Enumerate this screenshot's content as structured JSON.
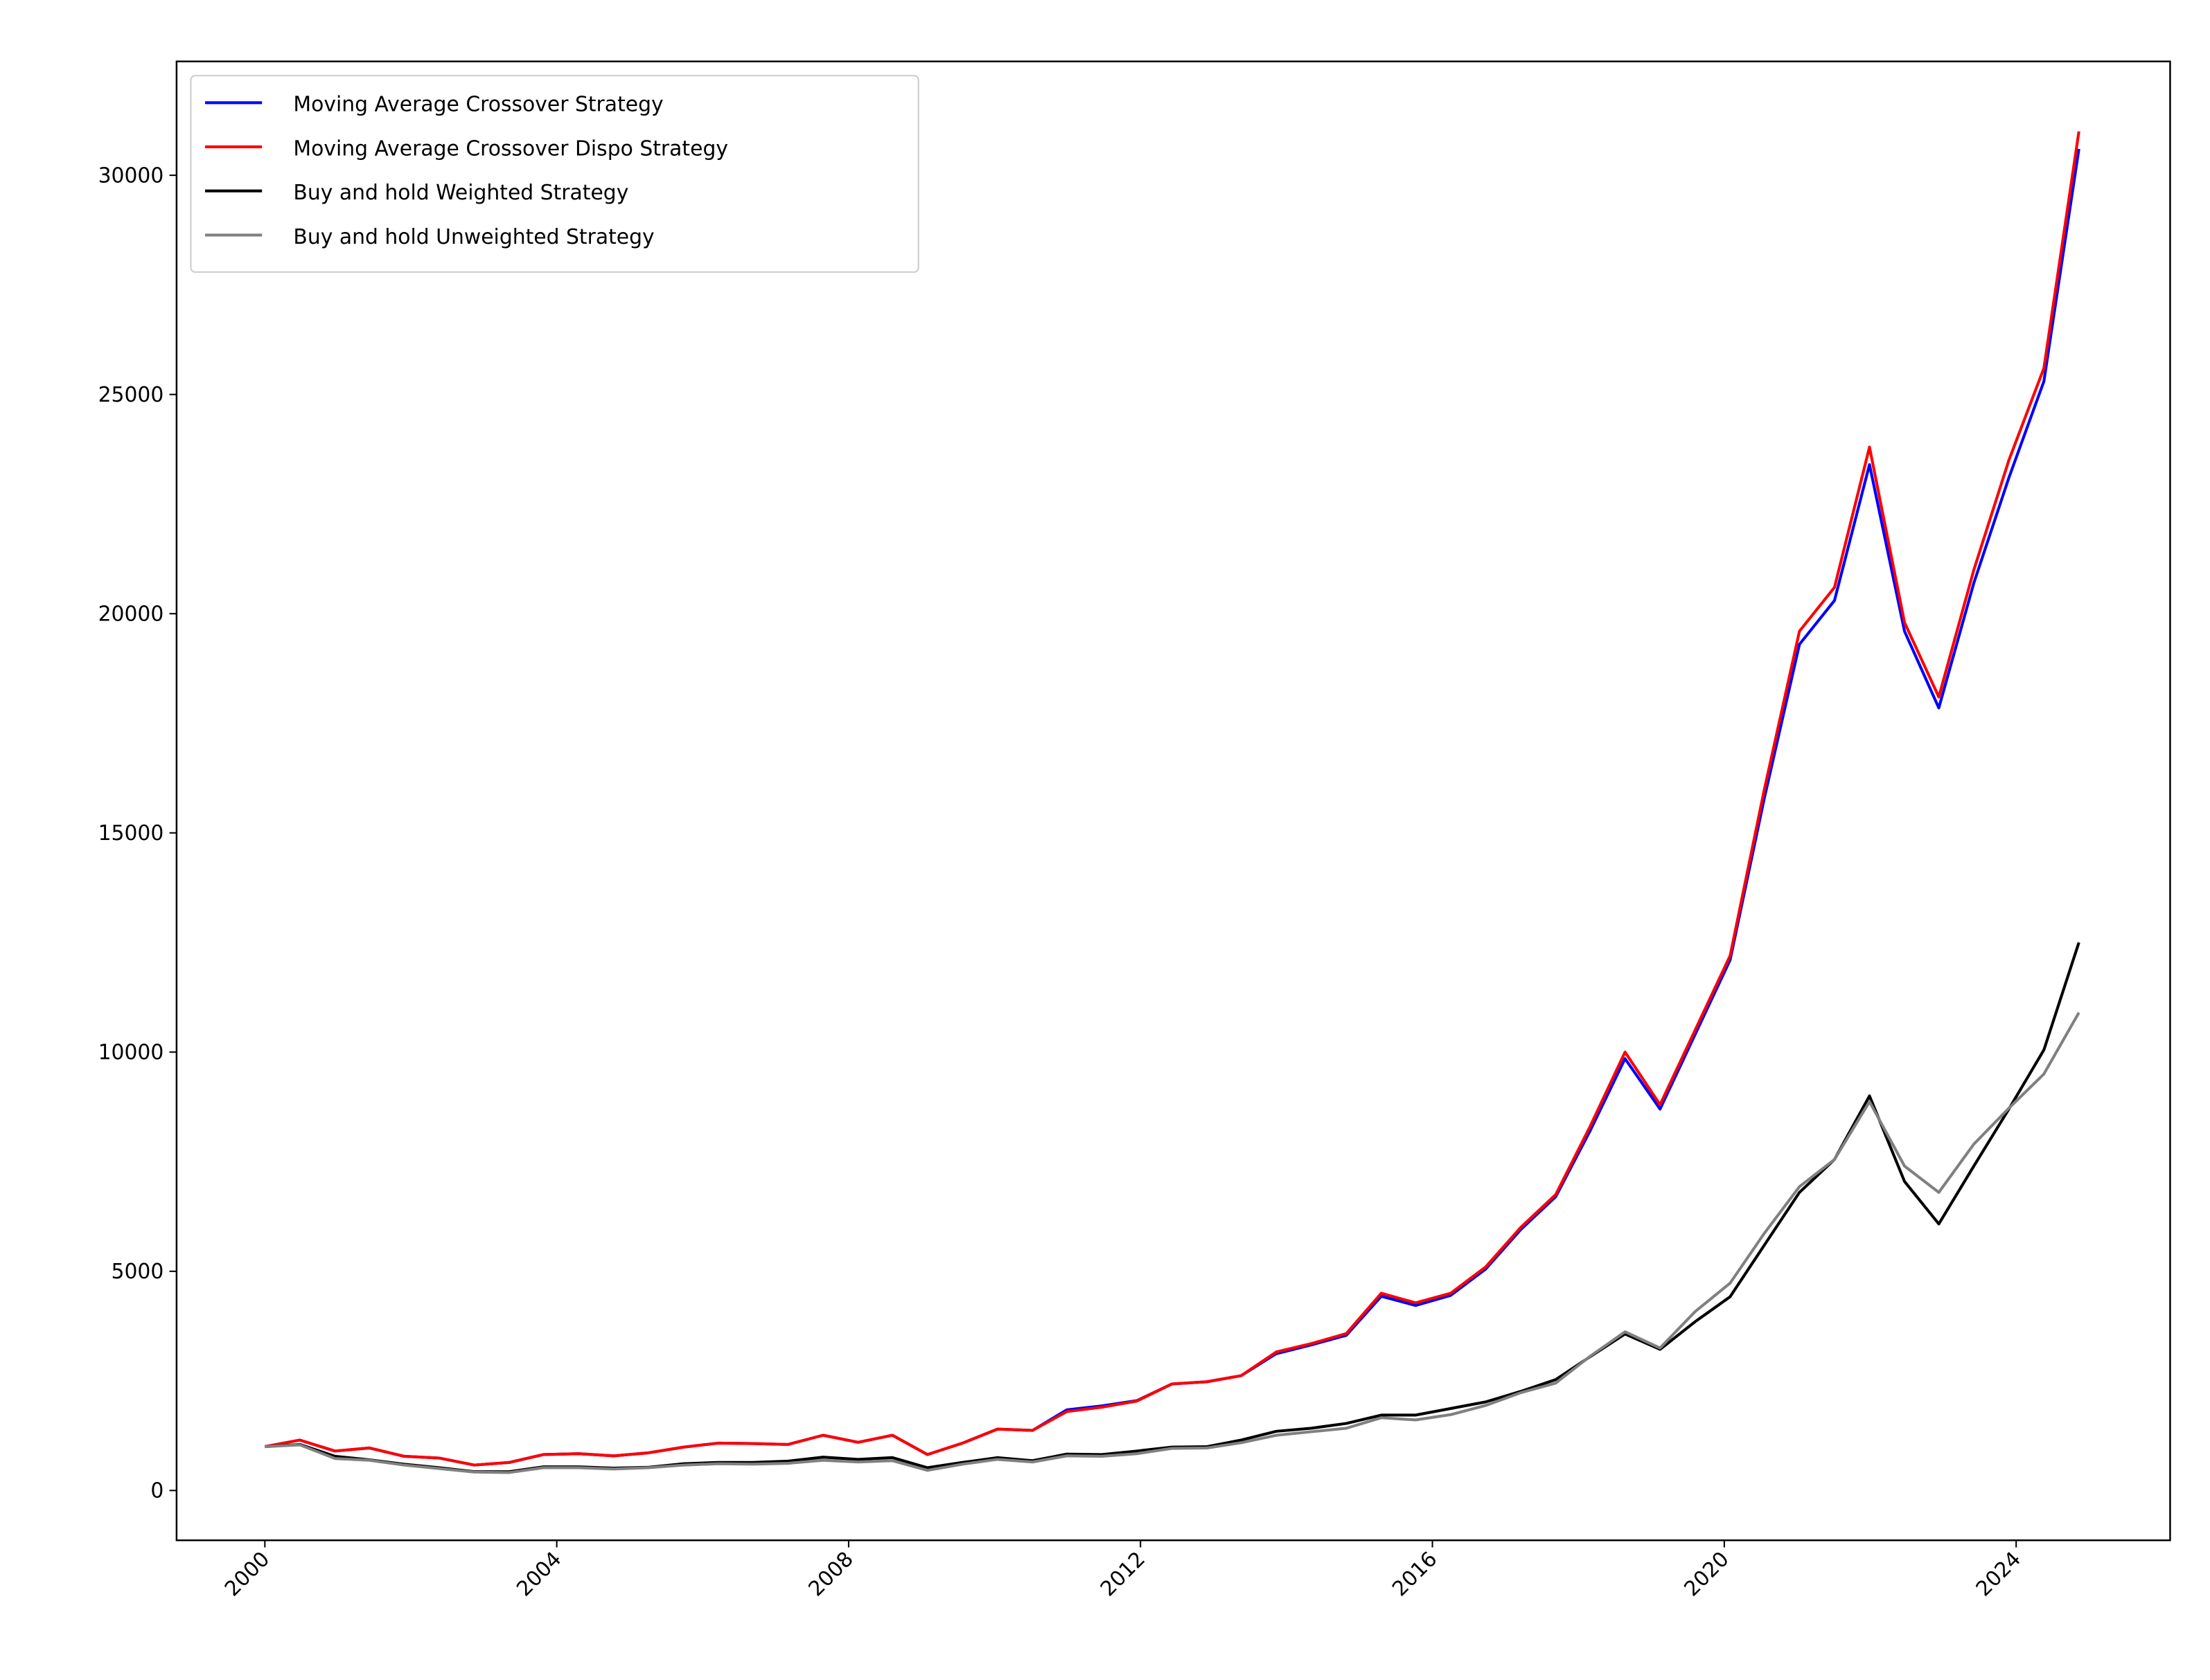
{
  "chart_data": {
    "type": "line",
    "x": [
      2000.0,
      2000.48,
      2000.96,
      2001.43,
      2001.91,
      2002.39,
      2002.87,
      2003.35,
      2003.82,
      2004.3,
      2004.78,
      2005.26,
      2005.74,
      2006.21,
      2006.69,
      2007.17,
      2007.65,
      2008.13,
      2008.6,
      2009.08,
      2009.56,
      2010.04,
      2010.52,
      2010.99,
      2011.47,
      2011.95,
      2012.43,
      2012.91,
      2013.38,
      2013.86,
      2014.34,
      2014.82,
      2015.3,
      2015.77,
      2016.25,
      2016.73,
      2017.21,
      2017.69,
      2018.16,
      2018.64,
      2019.12,
      2019.6,
      2020.08,
      2020.55,
      2021.03,
      2021.51,
      2021.99,
      2022.47,
      2022.94,
      2023.42,
      2023.9,
      2024.38,
      2024.86
    ],
    "series": [
      {
        "name": "Moving Average Crossover Strategy",
        "color": "#0000ff",
        "values": [
          1000,
          1150,
          900,
          970,
          780,
          740,
          580,
          640,
          820,
          840,
          790,
          860,
          990,
          1080,
          1070,
          1050,
          1260,
          1100,
          1260,
          820,
          1080,
          1400,
          1370,
          1840,
          1930,
          2050,
          2430,
          2480,
          2620,
          3120,
          3320,
          3540,
          4430,
          4220,
          4450,
          5050,
          5950,
          6700,
          8200,
          9850,
          8700,
          10400,
          12100,
          15800,
          19300,
          20300,
          23400,
          19600,
          17850,
          20700,
          23100,
          25300,
          30600
        ]
      },
      {
        "name": "Moving Average Crossover Dispo Strategy",
        "color": "#ff0000",
        "values": [
          1000,
          1150,
          900,
          970,
          780,
          740,
          580,
          640,
          820,
          840,
          790,
          860,
          990,
          1080,
          1070,
          1050,
          1260,
          1100,
          1260,
          820,
          1080,
          1400,
          1370,
          1800,
          1900,
          2040,
          2430,
          2480,
          2620,
          3160,
          3350,
          3580,
          4500,
          4280,
          4500,
          5100,
          6000,
          6750,
          8300,
          10000,
          8800,
          10500,
          12200,
          16000,
          19600,
          20600,
          23800,
          19800,
          18100,
          21000,
          23500,
          25600,
          31000
        ]
      },
      {
        "name": "Buy and hold Weighted Strategy",
        "color": "#000000",
        "values": [
          1000,
          1050,
          780,
          700,
          600,
          520,
          430,
          430,
          540,
          540,
          510,
          530,
          610,
          640,
          640,
          670,
          760,
          710,
          750,
          520,
          640,
          750,
          680,
          830,
          820,
          900,
          990,
          1000,
          1150,
          1350,
          1420,
          1530,
          1720,
          1720,
          1870,
          2020,
          2260,
          2530,
          3050,
          3570,
          3220,
          3850,
          4420,
          5600,
          6800,
          7550,
          9000,
          7050,
          6080,
          7400,
          8700,
          10050,
          12500
        ]
      },
      {
        "name": "Buy and hold Unweighted Strategy",
        "color": "#808080",
        "values": [
          1000,
          1040,
          730,
          690,
          580,
          500,
          420,
          410,
          520,
          520,
          490,
          520,
          580,
          610,
          600,
          620,
          690,
          650,
          680,
          460,
          600,
          710,
          650,
          790,
          780,
          840,
          960,
          970,
          1090,
          1260,
          1340,
          1420,
          1660,
          1610,
          1730,
          1940,
          2230,
          2450,
          3060,
          3620,
          3250,
          4080,
          4730,
          5870,
          6930,
          7550,
          8870,
          7400,
          6800,
          7900,
          8720,
          9500,
          10900
        ]
      }
    ],
    "xlim": [
      1998.79,
      2026.11
    ],
    "xticks": [
      2000,
      2004,
      2008,
      2012,
      2016,
      2020,
      2024
    ],
    "ylim": [
      -1136,
      32597
    ],
    "yticks": [
      0,
      5000,
      10000,
      15000,
      20000,
      25000,
      30000
    ],
    "legend": "upper left",
    "grid": false
  }
}
